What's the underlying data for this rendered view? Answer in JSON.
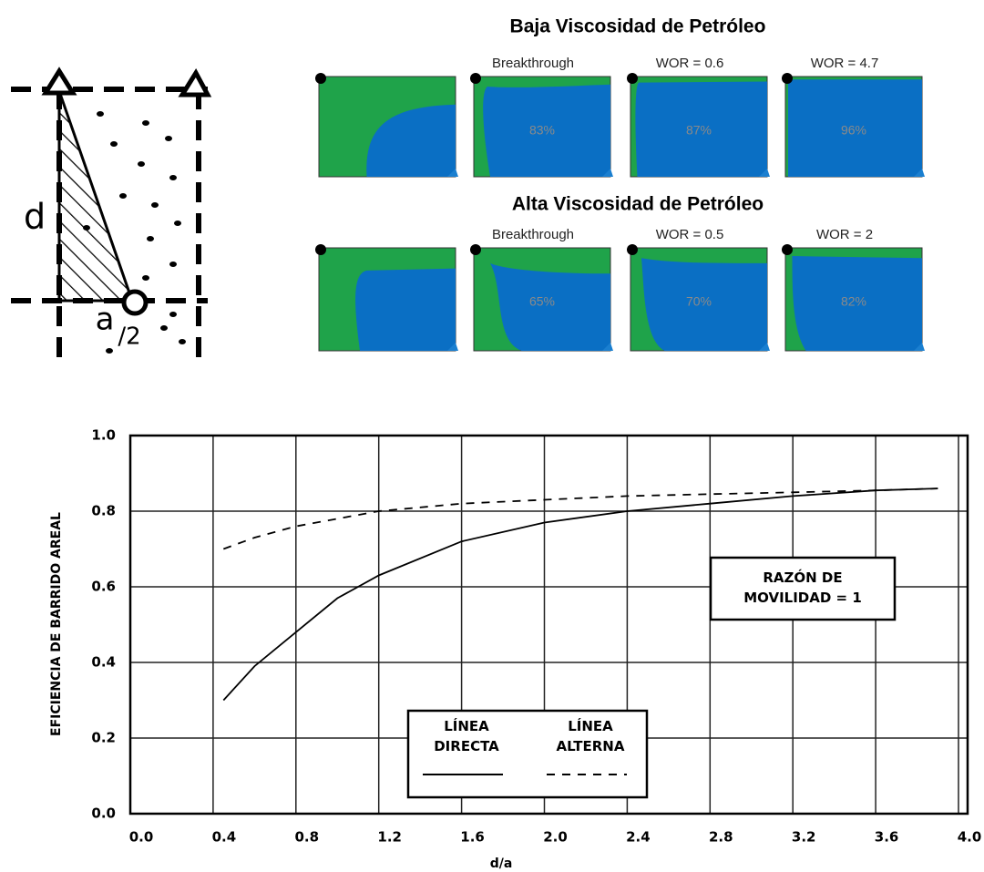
{
  "diagram": {
    "labels": [
      "d",
      "a",
      "/2"
    ]
  },
  "panels": {
    "rows": [
      {
        "title": "Baja Viscosidad de Petróleo",
        "labels": [
          "Breakthrough",
          "WOR = 0.6",
          "WOR = 4.7"
        ],
        "percentages": [
          "83%",
          "87%",
          "96%"
        ]
      },
      {
        "title": "Alta Viscosidad de Petróleo",
        "labels": [
          "Breakthrough",
          "WOR = 0.5",
          "WOR = 2"
        ],
        "percentages": [
          "65%",
          "70%",
          "82%"
        ]
      }
    ]
  },
  "chart_data": {
    "type": "line",
    "x_label": "d/a",
    "y_label": "EFICIENCIA DE BARRIDO AREAL",
    "x": [
      0.45,
      0.6,
      0.8,
      1.0,
      1.2,
      1.6,
      2.0,
      2.4,
      2.8,
      3.2,
      3.6,
      3.9
    ],
    "series": [
      {
        "name": "LÍNEA DIRECTA",
        "color": "#000000",
        "style": "solid",
        "values": [
          0.3,
          0.39,
          0.48,
          0.57,
          0.63,
          0.72,
          0.77,
          0.8,
          0.82,
          0.84,
          0.855,
          0.86
        ]
      },
      {
        "name": "LÍNEA ALTERNA",
        "color": "#000000",
        "style": "dashed",
        "values": [
          0.7,
          0.73,
          0.76,
          0.78,
          0.8,
          0.82,
          0.83,
          0.84,
          0.845,
          0.85,
          0.855,
          0.86
        ]
      }
    ],
    "annotation": "RAZÓN DE MOVILIDAD = 1",
    "xlim": [
      0,
      4.0
    ],
    "ylim": [
      0,
      1.0
    ],
    "xticks": [
      {
        "value": 0,
        "label": "0.0"
      },
      0.4,
      0.8,
      1.2,
      1.6,
      {
        "value": 2,
        "label": "2.0"
      },
      2.4,
      2.8,
      3.2,
      3.6,
      {
        "value": 4,
        "label": "4.0"
      }
    ],
    "yticks": [
      {
        "value": 0,
        "label": "0.0"
      },
      0.2,
      0.4,
      0.6,
      0.8,
      {
        "value": 1,
        "label": "1.0"
      }
    ],
    "grid": true,
    "legend": "bottom"
  }
}
